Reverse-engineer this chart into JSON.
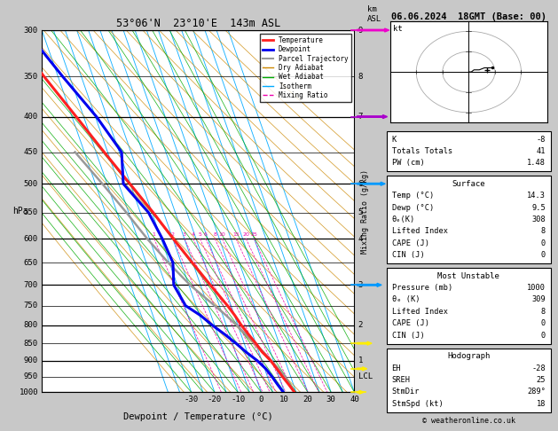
{
  "title_main": "53°06'N  23°10'E  143m ASL",
  "title_date": "06.06.2024  18GMT (Base: 00)",
  "xlabel": "Dewpoint / Temperature (°C)",
  "bg_color": "#c8c8c8",
  "plot_bg": "#ffffff",
  "colors": {
    "temperature": "#ff2020",
    "dewpoint": "#0000ee",
    "parcel": "#999999",
    "dry_adiabat": "#cc8800",
    "wet_adiabat": "#00aa00",
    "isotherm": "#00aaff",
    "mixing_ratio": "#ee00aa"
  },
  "pressure_levels": [
    300,
    350,
    400,
    450,
    500,
    550,
    600,
    650,
    700,
    750,
    800,
    850,
    900,
    950,
    1000
  ],
  "temp_ticks": [
    -30,
    -20,
    -10,
    0,
    10,
    20,
    30,
    40
  ],
  "km_labels": {
    "300": "9",
    "350": "8",
    "400": "7",
    "450": "",
    "500": "6",
    "550": "5",
    "600": "4",
    "650": "",
    "700": "3",
    "750": "",
    "800": "2",
    "850": "",
    "900": "1",
    "950": "LCL",
    "1000": ""
  },
  "mixing_ratios": [
    1,
    2,
    3,
    4,
    5,
    6,
    8,
    10,
    15,
    20,
    25
  ],
  "temp_profile_p": [
    1000,
    975,
    950,
    925,
    900,
    875,
    850,
    825,
    800,
    775,
    750,
    700,
    650,
    600,
    550,
    500,
    450,
    400,
    350,
    300
  ],
  "temp_profile_t": [
    14.3,
    13.0,
    11.5,
    10.2,
    8.8,
    6.5,
    5.0,
    3.2,
    1.5,
    0.2,
    -1.5,
    -5.8,
    -10.2,
    -14.8,
    -19.5,
    -25.2,
    -31.5,
    -38.2,
    -46.0,
    -54.0
  ],
  "dewp_profile_p": [
    1000,
    975,
    950,
    925,
    900,
    875,
    850,
    825,
    800,
    775,
    750,
    700,
    650,
    600,
    550,
    500,
    450,
    400,
    350,
    300
  ],
  "dewp_profile_t": [
    9.5,
    8.2,
    7.0,
    5.5,
    3.0,
    -0.5,
    -3.5,
    -7.0,
    -11.0,
    -14.5,
    -19.5,
    -21.5,
    -18.5,
    -19.5,
    -21.5,
    -28.0,
    -24.0,
    -29.5,
    -38.0,
    -47.0
  ],
  "parcel_profile_p": [
    1000,
    975,
    950,
    925,
    900,
    875,
    850,
    825,
    800,
    775,
    750,
    700,
    650,
    600,
    550,
    500,
    450
  ],
  "parcel_profile_t": [
    14.3,
    13.5,
    12.5,
    11.0,
    9.0,
    7.0,
    4.5,
    2.0,
    -0.5,
    -3.5,
    -7.0,
    -14.5,
    -20.5,
    -26.0,
    -31.0,
    -37.0,
    -44.0
  ],
  "stats_K": -8,
  "stats_TT": 41,
  "stats_PW": 1.48,
  "stats_surf_temp": 14.3,
  "stats_surf_dewp": 9.5,
  "stats_surf_theta_e": 308,
  "stats_surf_LI": 8,
  "stats_surf_CAPE": 0,
  "stats_surf_CIN": 0,
  "stats_mu_p": 1000,
  "stats_mu_theta_e": 309,
  "stats_mu_LI": 8,
  "stats_mu_CAPE": 0,
  "stats_mu_CIN": 0,
  "stats_EH": -28,
  "stats_SREH": 25,
  "stats_StmDir": 289,
  "stats_StmSpd": 18,
  "wind_barb_pressures": [
    300,
    400,
    500,
    700,
    850,
    925,
    1000
  ],
  "wind_barb_colors": [
    "#ee00cc",
    "#aa00cc",
    "#0099ff",
    "#0099ff",
    "#ffee00",
    "#ffee00",
    "#ffee00"
  ],
  "wind_barb_speeds": [
    22,
    20,
    18,
    15,
    10,
    8,
    5
  ],
  "wind_barb_dirs": [
    290,
    285,
    280,
    270,
    230,
    210,
    200
  ]
}
